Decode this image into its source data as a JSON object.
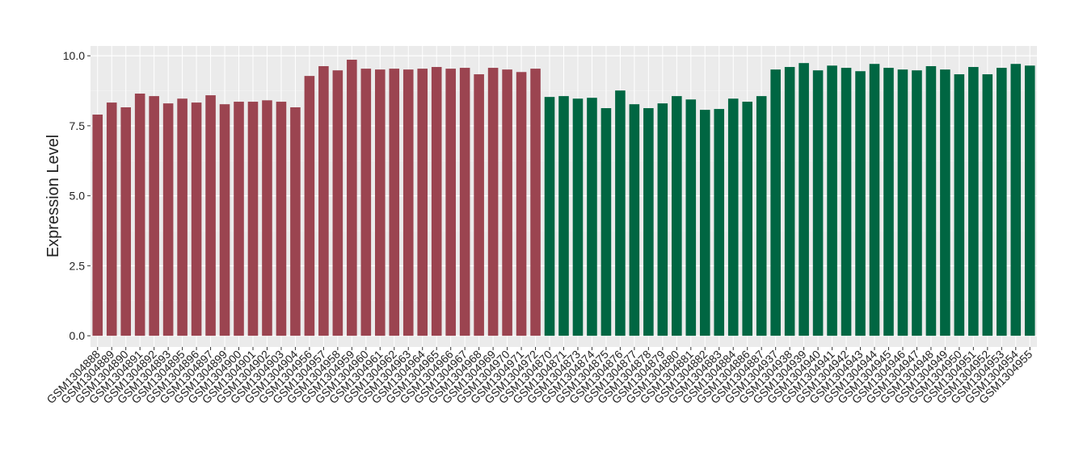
{
  "chart_data": {
    "type": "bar",
    "y_label": "Expression Level",
    "categories": [
      "GSM1304888",
      "GSM1304889",
      "GSM1304890",
      "GSM1304891",
      "GSM1304892",
      "GSM1304893",
      "GSM1304895",
      "GSM1304896",
      "GSM1304897",
      "GSM1304899",
      "GSM1304900",
      "GSM1304901",
      "GSM1304902",
      "GSM1304903",
      "GSM1304904",
      "GSM1304956",
      "GSM1304957",
      "GSM1304958",
      "GSM1304959",
      "GSM1304960",
      "GSM1304961",
      "GSM1304962",
      "GSM1304963",
      "GSM1304964",
      "GSM1304965",
      "GSM1304966",
      "GSM1304967",
      "GSM1304968",
      "GSM1304969",
      "GSM1304970",
      "GSM1304971",
      "GSM1304972",
      "GSM1304870",
      "GSM1304871",
      "GSM1304873",
      "GSM1304874",
      "GSM1304875",
      "GSM1304876",
      "GSM1304877",
      "GSM1304878",
      "GSM1304879",
      "GSM1304880",
      "GSM1304881",
      "GSM1304882",
      "GSM1304883",
      "GSM1304884",
      "GSM1304886",
      "GSM1304887",
      "GSM1304937",
      "GSM1304938",
      "GSM1304939",
      "GSM1304940",
      "GSM1304941",
      "GSM1304942",
      "GSM1304943",
      "GSM1304944",
      "GSM1304945",
      "GSM1304946",
      "GSM1304947",
      "GSM1304948",
      "GSM1304949",
      "GSM1304950",
      "GSM1304951",
      "GSM1304952",
      "GSM1304953",
      "GSM1304954",
      "GSM1304955"
    ],
    "values": [
      7.9,
      8.33,
      8.16,
      8.65,
      8.56,
      8.3,
      8.47,
      8.33,
      8.59,
      8.27,
      8.36,
      8.36,
      8.41,
      8.36,
      8.16,
      9.28,
      9.63,
      9.48,
      9.86,
      9.54,
      9.51,
      9.54,
      9.51,
      9.54,
      9.6,
      9.54,
      9.57,
      9.34,
      9.57,
      9.51,
      9.42,
      9.54,
      8.53,
      8.56,
      8.47,
      8.5,
      8.13,
      8.76,
      8.27,
      8.13,
      8.3,
      8.56,
      8.44,
      8.07,
      8.1,
      8.47,
      8.36,
      8.56,
      9.51,
      9.6,
      9.74,
      9.48,
      9.65,
      9.57,
      9.45,
      9.71,
      9.57,
      9.51,
      9.48,
      9.63,
      9.51,
      9.34,
      9.6,
      9.34,
      9.57,
      9.71,
      9.65
    ],
    "colors": [
      "#9b4450",
      "#9b4450",
      "#9b4450",
      "#9b4450",
      "#9b4450",
      "#9b4450",
      "#9b4450",
      "#9b4450",
      "#9b4450",
      "#9b4450",
      "#9b4450",
      "#9b4450",
      "#9b4450",
      "#9b4450",
      "#9b4450",
      "#9b4450",
      "#9b4450",
      "#9b4450",
      "#9b4450",
      "#9b4450",
      "#9b4450",
      "#9b4450",
      "#9b4450",
      "#9b4450",
      "#9b4450",
      "#9b4450",
      "#9b4450",
      "#9b4450",
      "#9b4450",
      "#9b4450",
      "#9b4450",
      "#9b4450",
      "#006642",
      "#006642",
      "#006642",
      "#006642",
      "#006642",
      "#006642",
      "#006642",
      "#006642",
      "#006642",
      "#006642",
      "#006642",
      "#006642",
      "#006642",
      "#006642",
      "#006642",
      "#006642",
      "#006642",
      "#006642",
      "#006642",
      "#006642",
      "#006642",
      "#006642",
      "#006642",
      "#006642",
      "#006642",
      "#006642",
      "#006642",
      "#006642",
      "#006642",
      "#006642",
      "#006642",
      "#006642",
      "#006642",
      "#006642",
      "#006642"
    ],
    "ylim": [
      -0.4,
      10.35
    ],
    "yticks": [
      {
        "value": 0,
        "label": "0.0"
      },
      {
        "value": 2.5,
        "label": "2.5"
      },
      {
        "value": 5,
        "label": "5.0"
      },
      {
        "value": 7.5,
        "label": "7.5"
      },
      {
        "value": 10,
        "label": "10.0"
      }
    ],
    "grid": true
  }
}
